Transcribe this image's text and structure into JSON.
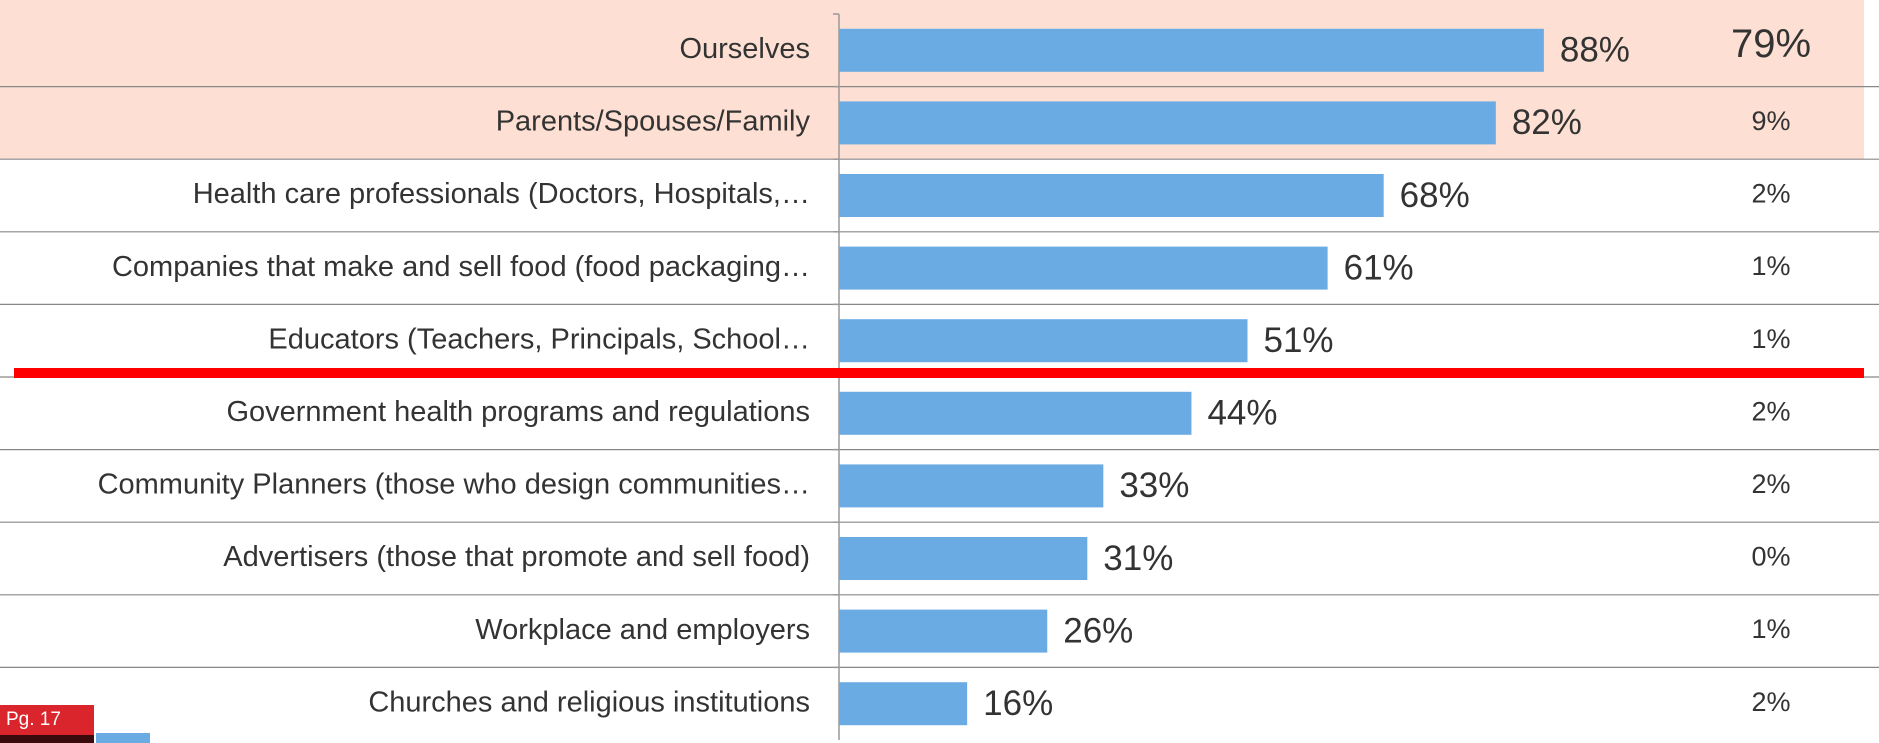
{
  "chart_data": {
    "type": "bar",
    "categories": [
      "Ourselves",
      "Parents/Spouses/Family",
      "Health care professionals (Doctors, Hospitals,…",
      "Companies that make and sell food (food packaging…",
      "Educators (Teachers, Principals, School…",
      "Government health programs and regulations",
      "Community Planners (those who design communities…",
      "Advertisers (those that promote and sell food)",
      "Workplace and employers",
      "Churches and religious institutions"
    ],
    "values": [
      88,
      82,
      68,
      61,
      51,
      44,
      33,
      31,
      26,
      16
    ],
    "value_labels": [
      "88%",
      "82%",
      "68%",
      "61%",
      "51%",
      "44%",
      "33%",
      "31%",
      "26%",
      "16%"
    ],
    "color": "#6aabe4",
    "xlim": [
      0,
      100
    ],
    "second_column": {
      "values": [
        79,
        9,
        2,
        1,
        1,
        2,
        2,
        0,
        1,
        2
      ],
      "value_labels": [
        "79%",
        "9%",
        "2%",
        "1%",
        "1%",
        "2%",
        "2%",
        "0%",
        "1%",
        "2%"
      ]
    },
    "highlight_color": "#fde0d3",
    "divider_color": "#ff0000",
    "annotation": "Pg. 17"
  }
}
